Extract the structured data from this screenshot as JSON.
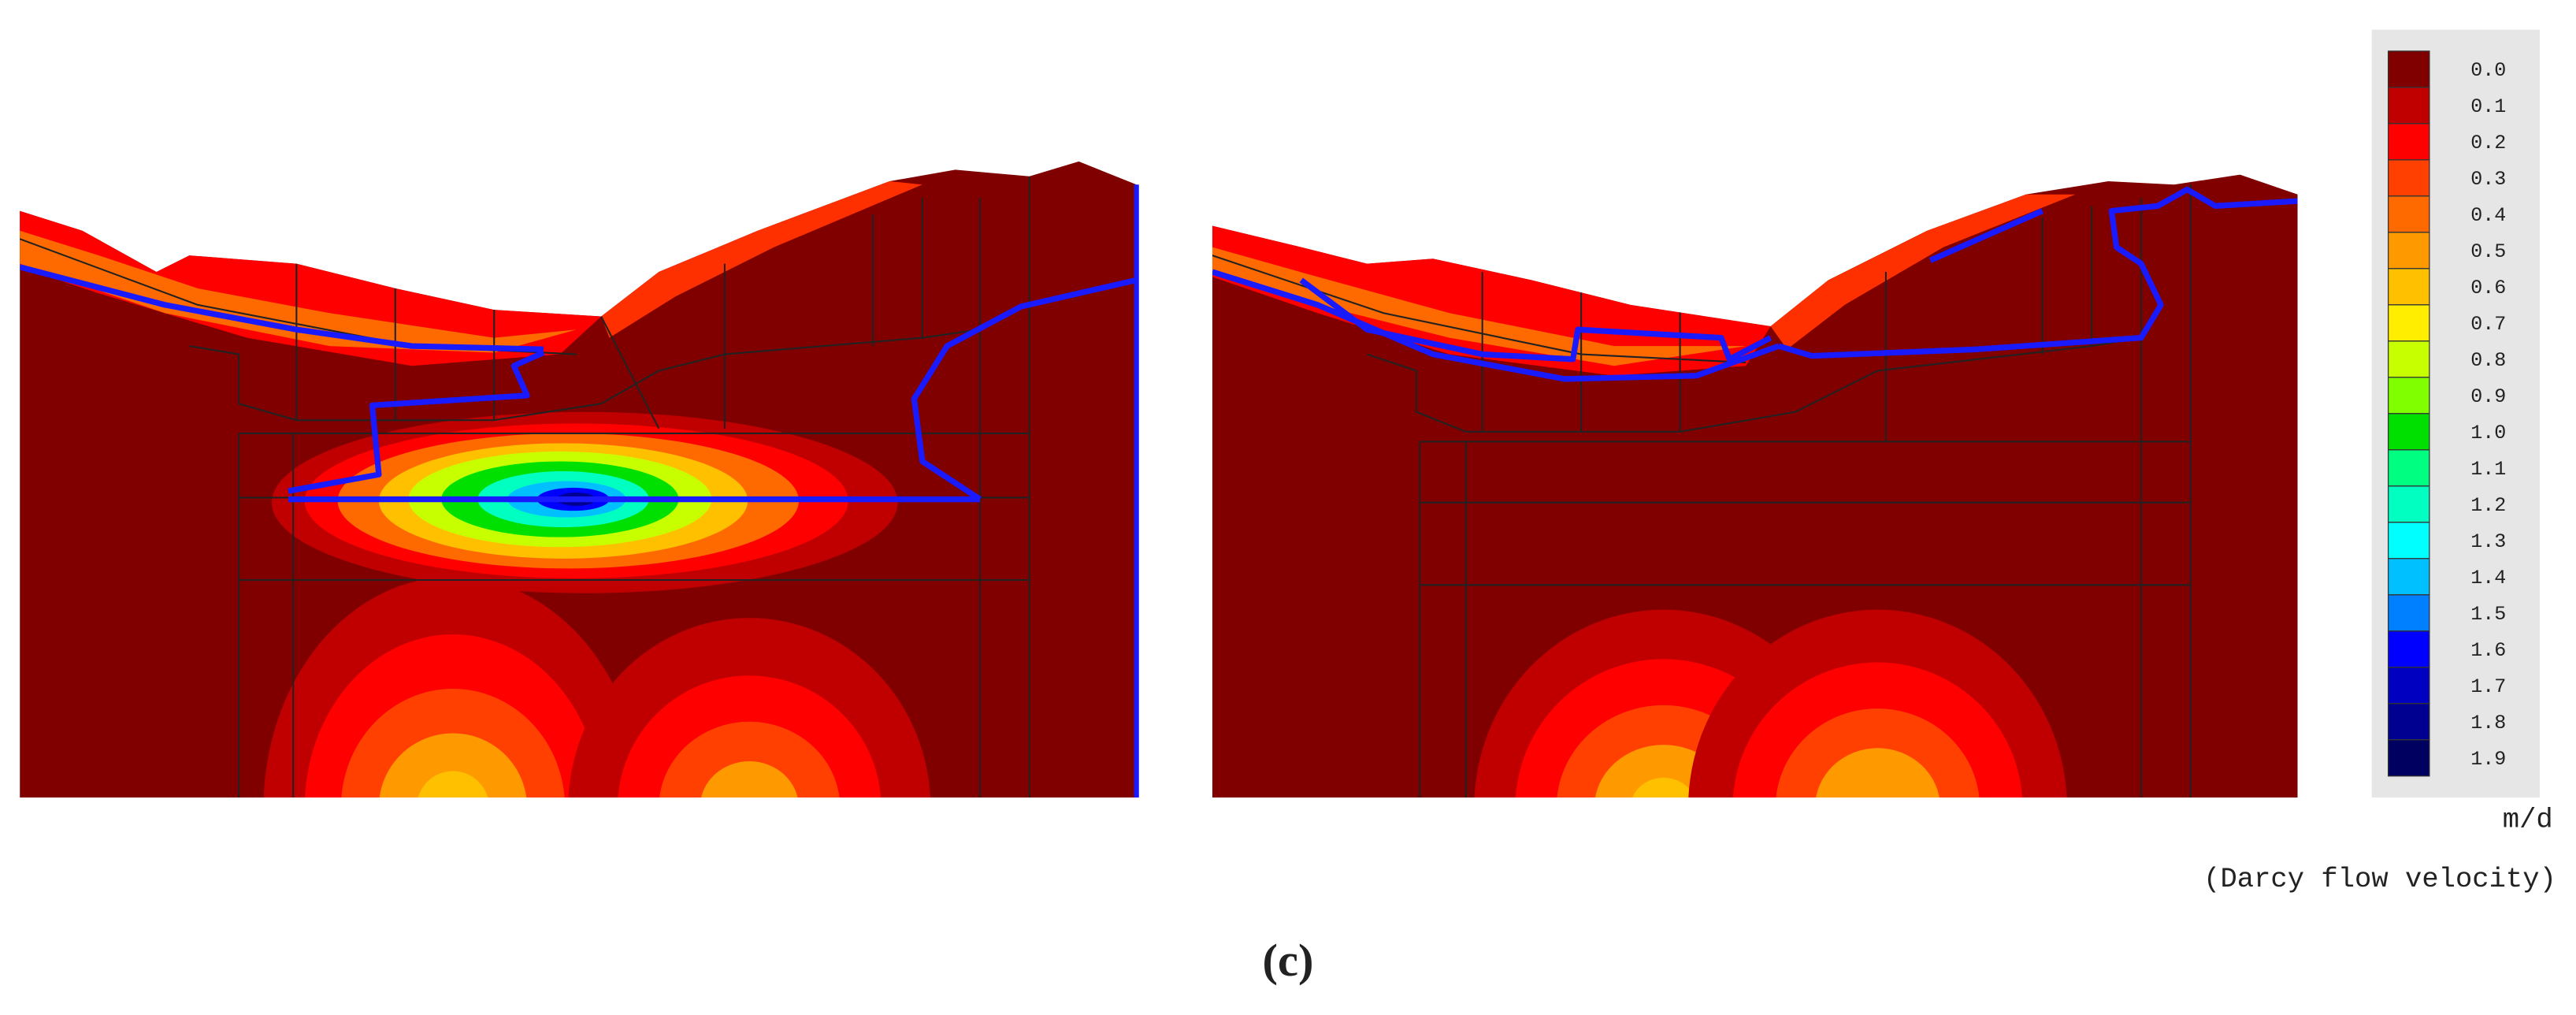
{
  "legend": {
    "labels": [
      "0.0",
      "0.1",
      "0.2",
      "0.3",
      "0.4",
      "0.5",
      "0.6",
      "0.7",
      "0.8",
      "0.9",
      "1.0",
      "1.1",
      "1.2",
      "1.3",
      "1.4",
      "1.5",
      "1.6",
      "1.7",
      "1.8",
      "1.9"
    ],
    "colors": [
      "#800000",
      "#c00000",
      "#ff0000",
      "#ff4000",
      "#ff6a00",
      "#ff9900",
      "#ffc000",
      "#ffee00",
      "#c8ff00",
      "#80ff00",
      "#00e000",
      "#00ff80",
      "#00ffc0",
      "#00ffff",
      "#00c0ff",
      "#0080ff",
      "#0000ff",
      "#0000c0",
      "#000090",
      "#000060"
    ]
  },
  "unit": "m/d",
  "quantity": "(Darcy flow velocity)",
  "caption": "(c)"
}
